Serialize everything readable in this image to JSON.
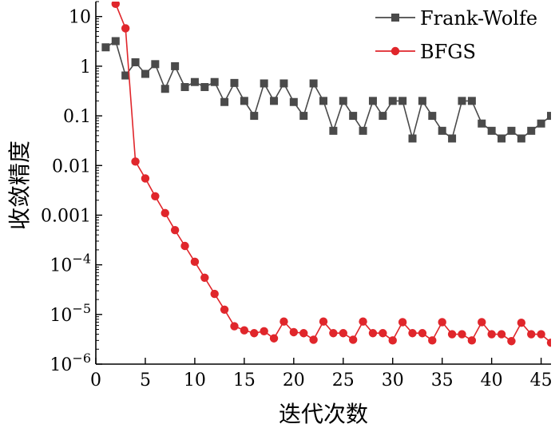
{
  "chart_data": {
    "type": "line",
    "xlabel": "迭代次数",
    "ylabel": "收敛精度",
    "xlim": [
      0,
      46
    ],
    "ylim": [
      1e-06,
      20
    ],
    "yscale": "log",
    "x_ticks": [
      0,
      5,
      10,
      15,
      20,
      25,
      30,
      35,
      40,
      45
    ],
    "y_ticks": [
      {
        "value": 1e-06,
        "base": "10",
        "exp": "−6"
      },
      {
        "value": 1e-05,
        "base": "10",
        "exp": "−5"
      },
      {
        "value": 0.0001,
        "base": "10",
        "exp": "−4"
      },
      {
        "value": 0.001,
        "label": "0.001"
      },
      {
        "value": 0.01,
        "label": "0.01"
      },
      {
        "value": 0.1,
        "label": "0.1"
      },
      {
        "value": 1,
        "label": "1"
      },
      {
        "value": 10,
        "label": "10"
      }
    ],
    "legend_position": "top-right",
    "grid": false,
    "series": [
      {
        "name": "Frank-Wolfe",
        "color": "#4a4a4a",
        "marker": "square",
        "x": [
          1,
          2,
          3,
          4,
          5,
          6,
          7,
          8,
          9,
          10,
          11,
          12,
          13,
          14,
          15,
          16,
          17,
          18,
          19,
          20,
          21,
          22,
          23,
          24,
          25,
          26,
          27,
          28,
          29,
          30,
          31,
          32,
          33,
          34,
          35,
          36,
          37,
          38,
          39,
          40,
          41,
          42,
          43,
          44,
          45,
          46
        ],
        "y": [
          2.4,
          3.2,
          0.65,
          1.2,
          0.7,
          1.1,
          0.35,
          1.0,
          0.38,
          0.48,
          0.38,
          0.48,
          0.19,
          0.46,
          0.2,
          0.1,
          0.45,
          0.2,
          0.45,
          0.19,
          0.1,
          0.45,
          0.2,
          0.05,
          0.2,
          0.1,
          0.05,
          0.2,
          0.1,
          0.2,
          0.2,
          0.035,
          0.2,
          0.1,
          0.05,
          0.035,
          0.2,
          0.2,
          0.07,
          0.05,
          0.035,
          0.05,
          0.035,
          0.05,
          0.07,
          0.1
        ]
      },
      {
        "name": "BFGS",
        "color": "#e0262b",
        "marker": "circle",
        "x": [
          2,
          3,
          4,
          5,
          6,
          7,
          8,
          9,
          10,
          11,
          12,
          13,
          14,
          15,
          16,
          17,
          18,
          19,
          20,
          21,
          22,
          23,
          24,
          25,
          26,
          27,
          28,
          29,
          30,
          31,
          32,
          33,
          34,
          35,
          36,
          37,
          38,
          39,
          40,
          41,
          42,
          43,
          44,
          45,
          46
        ],
        "y": [
          18,
          5.8,
          0.012,
          0.0055,
          0.0024,
          0.0011,
          0.0005,
          0.00024,
          0.000115,
          5.5e-05,
          2.6e-05,
          1.25e-05,
          5.8e-06,
          4.8e-06,
          4.2e-06,
          4.6e-06,
          3.3e-06,
          7.2e-06,
          4.4e-06,
          4.2e-06,
          3.1e-06,
          7.2e-06,
          4.2e-06,
          4.2e-06,
          3.1e-06,
          7.2e-06,
          4.2e-06,
          4.2e-06,
          3e-06,
          7e-06,
          4.2e-06,
          4.2e-06,
          3e-06,
          7e-06,
          4e-06,
          4e-06,
          3e-06,
          7e-06,
          4e-06,
          4e-06,
          2.9e-06,
          6.8e-06,
          4e-06,
          4e-06,
          2.7e-06
        ]
      }
    ]
  }
}
